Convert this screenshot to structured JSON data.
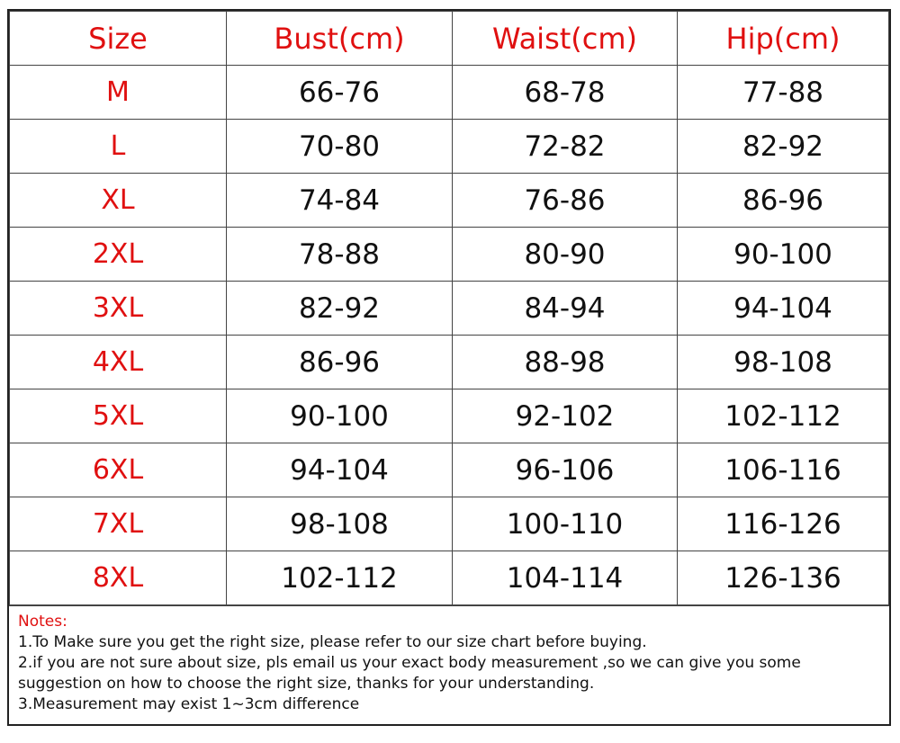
{
  "table": {
    "header": [
      "Size",
      "Bust(cm)",
      "Waist(cm)",
      "Hip(cm)"
    ],
    "rows": [
      [
        "M",
        "66-76",
        "68-78",
        "77-88"
      ],
      [
        "L",
        "70-80",
        "72-82",
        "82-92"
      ],
      [
        "XL",
        "74-84",
        "76-86",
        "86-96"
      ],
      [
        "2XL",
        "78-88",
        "80-90",
        "90-100"
      ],
      [
        "3XL",
        "82-92",
        "84-94",
        "94-104"
      ],
      [
        "4XL",
        "86-96",
        "88-98",
        "98-108"
      ],
      [
        "5XL",
        "90-100",
        "92-102",
        "102-112"
      ],
      [
        "6XL",
        "94-104",
        "96-106",
        "106-116"
      ],
      [
        "7XL",
        "98-108",
        "100-110",
        "116-126"
      ],
      [
        "8XL",
        "102-112",
        "104-114",
        "126-136"
      ]
    ]
  },
  "notes": {
    "title": "Notes:",
    "lines": [
      "1.To Make sure you get the right size, please refer to our size chart before buying.",
      "2.if you are not sure about size, pls email us your exact body measurement ,so we can give you some suggestion on how to choose the right size, thanks for your understanding.",
      "3.Measurement may exist 1~3cm difference"
    ]
  }
}
